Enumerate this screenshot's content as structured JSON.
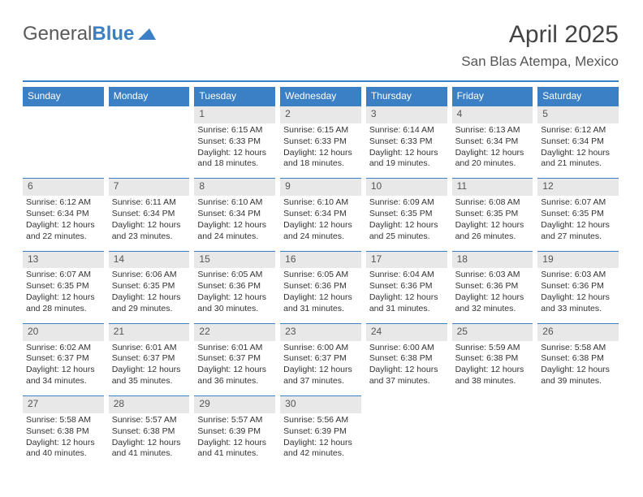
{
  "brand": {
    "part1": "General",
    "part2": "Blue"
  },
  "header": {
    "title": "April 2025",
    "location": "San Blas Atempa, Mexico"
  },
  "colors": {
    "accent": "#3b7fc4",
    "daynum_bg": "#e8e8e8",
    "text": "#333333",
    "header_text": "#555555"
  },
  "weekdays": [
    "Sunday",
    "Monday",
    "Tuesday",
    "Wednesday",
    "Thursday",
    "Friday",
    "Saturday"
  ],
  "grid": {
    "cols": 7,
    "rows": 5,
    "leading_blanks": 2,
    "days": [
      {
        "n": "1",
        "sr": "6:15 AM",
        "ss": "6:33 PM",
        "dl": "12 hours and 18 minutes."
      },
      {
        "n": "2",
        "sr": "6:15 AM",
        "ss": "6:33 PM",
        "dl": "12 hours and 18 minutes."
      },
      {
        "n": "3",
        "sr": "6:14 AM",
        "ss": "6:33 PM",
        "dl": "12 hours and 19 minutes."
      },
      {
        "n": "4",
        "sr": "6:13 AM",
        "ss": "6:34 PM",
        "dl": "12 hours and 20 minutes."
      },
      {
        "n": "5",
        "sr": "6:12 AM",
        "ss": "6:34 PM",
        "dl": "12 hours and 21 minutes."
      },
      {
        "n": "6",
        "sr": "6:12 AM",
        "ss": "6:34 PM",
        "dl": "12 hours and 22 minutes."
      },
      {
        "n": "7",
        "sr": "6:11 AM",
        "ss": "6:34 PM",
        "dl": "12 hours and 23 minutes."
      },
      {
        "n": "8",
        "sr": "6:10 AM",
        "ss": "6:34 PM",
        "dl": "12 hours and 24 minutes."
      },
      {
        "n": "9",
        "sr": "6:10 AM",
        "ss": "6:34 PM",
        "dl": "12 hours and 24 minutes."
      },
      {
        "n": "10",
        "sr": "6:09 AM",
        "ss": "6:35 PM",
        "dl": "12 hours and 25 minutes."
      },
      {
        "n": "11",
        "sr": "6:08 AM",
        "ss": "6:35 PM",
        "dl": "12 hours and 26 minutes."
      },
      {
        "n": "12",
        "sr": "6:07 AM",
        "ss": "6:35 PM",
        "dl": "12 hours and 27 minutes."
      },
      {
        "n": "13",
        "sr": "6:07 AM",
        "ss": "6:35 PM",
        "dl": "12 hours and 28 minutes."
      },
      {
        "n": "14",
        "sr": "6:06 AM",
        "ss": "6:35 PM",
        "dl": "12 hours and 29 minutes."
      },
      {
        "n": "15",
        "sr": "6:05 AM",
        "ss": "6:36 PM",
        "dl": "12 hours and 30 minutes."
      },
      {
        "n": "16",
        "sr": "6:05 AM",
        "ss": "6:36 PM",
        "dl": "12 hours and 31 minutes."
      },
      {
        "n": "17",
        "sr": "6:04 AM",
        "ss": "6:36 PM",
        "dl": "12 hours and 31 minutes."
      },
      {
        "n": "18",
        "sr": "6:03 AM",
        "ss": "6:36 PM",
        "dl": "12 hours and 32 minutes."
      },
      {
        "n": "19",
        "sr": "6:03 AM",
        "ss": "6:36 PM",
        "dl": "12 hours and 33 minutes."
      },
      {
        "n": "20",
        "sr": "6:02 AM",
        "ss": "6:37 PM",
        "dl": "12 hours and 34 minutes."
      },
      {
        "n": "21",
        "sr": "6:01 AM",
        "ss": "6:37 PM",
        "dl": "12 hours and 35 minutes."
      },
      {
        "n": "22",
        "sr": "6:01 AM",
        "ss": "6:37 PM",
        "dl": "12 hours and 36 minutes."
      },
      {
        "n": "23",
        "sr": "6:00 AM",
        "ss": "6:37 PM",
        "dl": "12 hours and 37 minutes."
      },
      {
        "n": "24",
        "sr": "6:00 AM",
        "ss": "6:38 PM",
        "dl": "12 hours and 37 minutes."
      },
      {
        "n": "25",
        "sr": "5:59 AM",
        "ss": "6:38 PM",
        "dl": "12 hours and 38 minutes."
      },
      {
        "n": "26",
        "sr": "5:58 AM",
        "ss": "6:38 PM",
        "dl": "12 hours and 39 minutes."
      },
      {
        "n": "27",
        "sr": "5:58 AM",
        "ss": "6:38 PM",
        "dl": "12 hours and 40 minutes."
      },
      {
        "n": "28",
        "sr": "5:57 AM",
        "ss": "6:38 PM",
        "dl": "12 hours and 41 minutes."
      },
      {
        "n": "29",
        "sr": "5:57 AM",
        "ss": "6:39 PM",
        "dl": "12 hours and 41 minutes."
      },
      {
        "n": "30",
        "sr": "5:56 AM",
        "ss": "6:39 PM",
        "dl": "12 hours and 42 minutes."
      }
    ]
  },
  "labels": {
    "sunrise": "Sunrise:",
    "sunset": "Sunset:",
    "daylight": "Daylight:"
  }
}
